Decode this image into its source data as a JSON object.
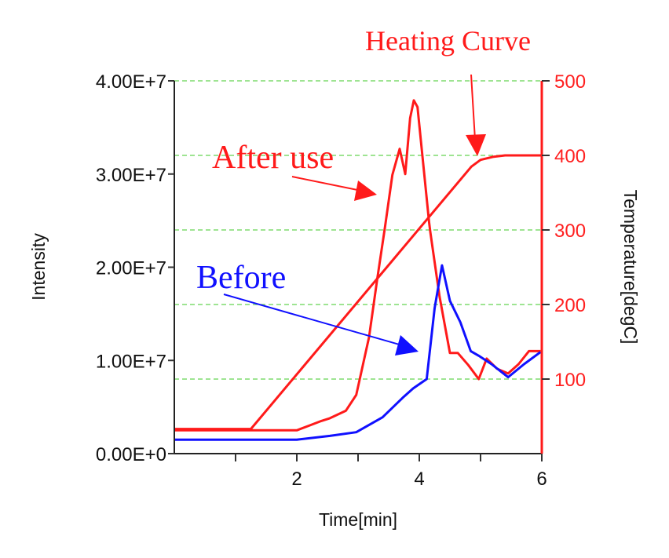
{
  "chart_data": {
    "type": "line",
    "title": "",
    "xlabel": "Time[min]",
    "ylabel": "Intensity",
    "y2label": "Temperature[degC]",
    "xlim": [
      0,
      6
    ],
    "ylim": [
      0,
      40000000
    ],
    "y2lim": [
      0,
      500
    ],
    "x_ticks": [
      {
        "v": 1,
        "label": ""
      },
      {
        "v": 2,
        "label": "2"
      },
      {
        "v": 3,
        "label": ""
      },
      {
        "v": 4,
        "label": "4"
      },
      {
        "v": 5,
        "label": ""
      },
      {
        "v": 6,
        "label": "6"
      }
    ],
    "y_ticks": [
      {
        "v": 0,
        "label": "0.00E+0"
      },
      {
        "v": 10000000,
        "label": "1.00E+7"
      },
      {
        "v": 20000000,
        "label": "2.00E+7"
      },
      {
        "v": 30000000,
        "label": "3.00E+7"
      },
      {
        "v": 40000000,
        "label": "4.00E+7"
      }
    ],
    "y2_ticks": [
      {
        "v": 100,
        "label": "100"
      },
      {
        "v": 200,
        "label": "200"
      },
      {
        "v": 300,
        "label": "300"
      },
      {
        "v": 400,
        "label": "400"
      },
      {
        "v": 500,
        "label": "500"
      }
    ],
    "grid": "horizontal dashed at right-axis ticks",
    "colors": {
      "after": "#ff1a1a",
      "before": "#1010ff",
      "heating": "#ff1a1a",
      "grid": "#7fdc6f",
      "right_axis": "#ff1a1a"
    },
    "series": [
      {
        "name": "After use",
        "axis": "left",
        "color": "#ff1a1a",
        "x": [
          0,
          1,
          2.0,
          2.2,
          2.4,
          2.54,
          2.8,
          2.97,
          3.18,
          3.31,
          3.44,
          3.56,
          3.68,
          3.77,
          3.85,
          3.91,
          3.97,
          4.05,
          4.16,
          4.18,
          4.33,
          4.5,
          4.63,
          4.8,
          4.97,
          5.1,
          5.27,
          5.45,
          5.62,
          5.79,
          5.98
        ],
        "y": [
          2500000,
          2500000,
          2500000,
          3000000,
          3500000,
          3800000,
          4600000,
          6300000,
          12500000,
          18600000,
          24300000,
          29900000,
          32700000,
          30000000,
          36000000,
          37900000,
          37200000,
          32000000,
          24800000,
          23800000,
          16900000,
          10800000,
          10800000,
          9500000,
          8000000,
          10200000,
          9100000,
          8600000,
          9600000,
          11000000,
          11000000
        ]
      },
      {
        "name": "Before",
        "axis": "left",
        "color": "#1010ff",
        "x": [
          0,
          1,
          2.0,
          2.54,
          2.97,
          3.4,
          3.73,
          3.9,
          4.12,
          4.25,
          4.37,
          4.5,
          4.67,
          4.84,
          4.97,
          5.18,
          5.45,
          5.71,
          5.98
        ],
        "y": [
          1500000,
          1500000,
          1500000,
          1900000,
          2300000,
          3900000,
          6000000,
          7000000,
          8000000,
          15600000,
          20200000,
          16400000,
          14100000,
          11000000,
          10500000,
          9600000,
          8200000,
          9600000,
          10900000
        ]
      },
      {
        "name": "Heating Curve",
        "axis": "right",
        "color": "#ff1a1a",
        "x": [
          0,
          1.25,
          4.85,
          5.0,
          5.2,
          5.4,
          6.0
        ],
        "y": [
          33,
          33,
          385,
          394,
          398,
          400,
          400
        ]
      }
    ],
    "annotations": [
      {
        "text": "Heating Curve",
        "color": "#ff1a1a"
      },
      {
        "text": "After use",
        "color": "#ff1a1a"
      },
      {
        "text": "Before",
        "color": "#1010ff"
      }
    ]
  }
}
